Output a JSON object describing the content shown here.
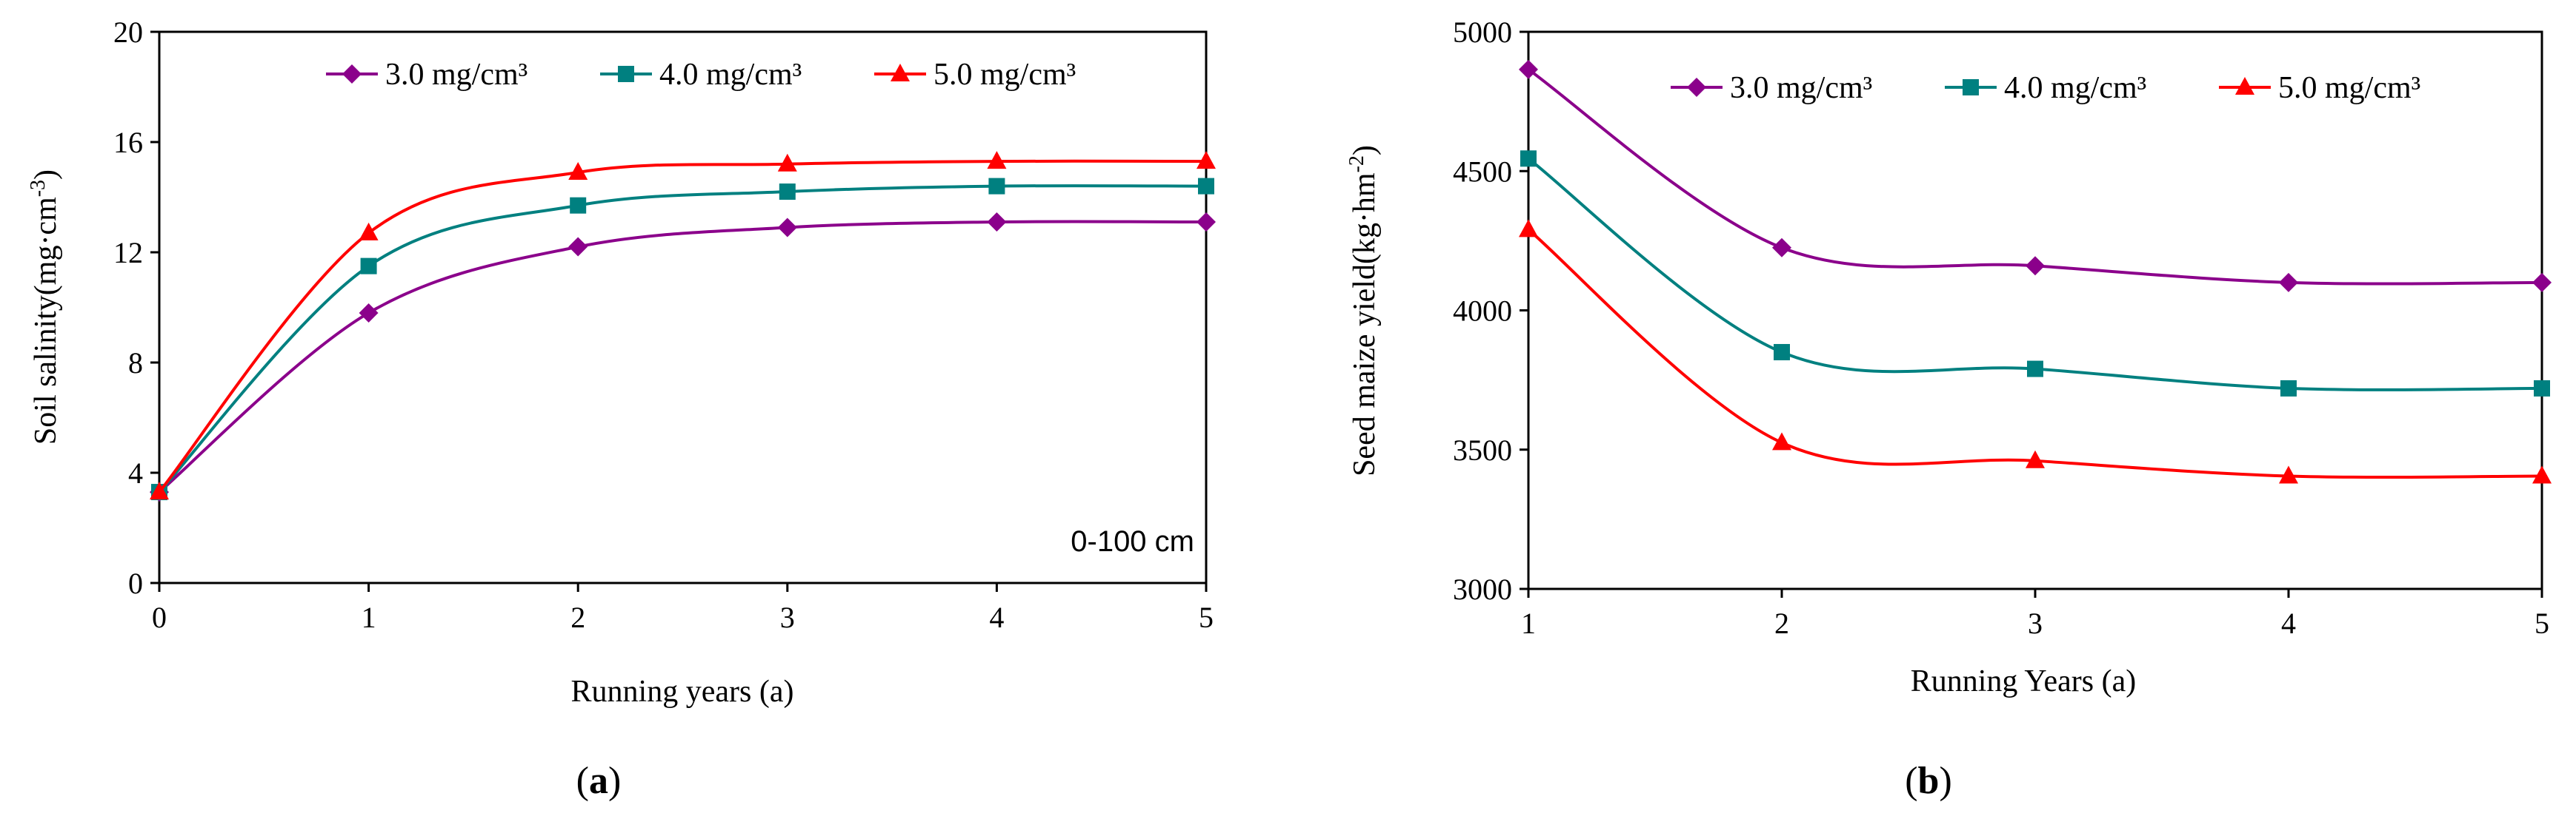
{
  "chart_data": [
    {
      "type": "line",
      "panel_label": "a",
      "title": "",
      "xlabel": "Running years (a)",
      "ylabel": "Soil salinity(mg·cm",
      "ylabel_sup": "-3",
      "ylabel_close": ")",
      "annotation": "0-100 cm",
      "xlim": [
        0,
        5
      ],
      "ylim": [
        0,
        20
      ],
      "x_ticks": [
        "0",
        "1",
        "2",
        "3",
        "4",
        "5"
      ],
      "y_ticks": [
        "0",
        "4",
        "8",
        "12",
        "16",
        "20"
      ],
      "grid": false,
      "legend_position": "top-right",
      "series": [
        {
          "name": "3.0 mg/cm³",
          "color": "#8b008b",
          "marker": "diamond",
          "x": [
            0,
            1,
            2,
            3,
            4,
            5
          ],
          "values": [
            3.3,
            9.8,
            12.2,
            12.9,
            13.1,
            13.1
          ]
        },
        {
          "name": "4.0 mg/cm³",
          "color": "#008080",
          "marker": "square",
          "x": [
            0,
            1,
            2,
            3,
            4,
            5
          ],
          "values": [
            3.3,
            11.5,
            13.7,
            14.2,
            14.4,
            14.4
          ]
        },
        {
          "name": "5.0 mg/cm³",
          "color": "#ff0000",
          "marker": "triangle",
          "x": [
            0,
            1,
            2,
            3,
            4,
            5
          ],
          "values": [
            3.3,
            12.7,
            14.9,
            15.2,
            15.3,
            15.3
          ]
        }
      ]
    },
    {
      "type": "line",
      "panel_label": "b",
      "title": "",
      "xlabel": "Running Years (a)",
      "ylabel": "Seed maize yield(kg·hm",
      "ylabel_sup": "-2",
      "ylabel_close": ")",
      "annotation": "",
      "xlim": [
        1,
        5
      ],
      "ylim": [
        3000,
        5000
      ],
      "x_ticks": [
        "1",
        "2",
        "3",
        "4",
        "5"
      ],
      "y_ticks": [
        "3000",
        "3500",
        "4000",
        "4500",
        "5000"
      ],
      "grid": false,
      "legend_position": "top-right",
      "series": [
        {
          "name": "3.0 mg/cm³",
          "color": "#8b008b",
          "marker": "diamond",
          "x": [
            1,
            2,
            3,
            4,
            5
          ],
          "values": [
            4865,
            4225,
            4160,
            4100,
            4100
          ]
        },
        {
          "name": "4.0 mg/cm³",
          "color": "#008080",
          "marker": "square",
          "x": [
            1,
            2,
            3,
            4,
            5
          ],
          "values": [
            4545,
            3850,
            3790,
            3720,
            3720
          ]
        },
        {
          "name": "5.0 mg/cm³",
          "color": "#ff0000",
          "marker": "triangle",
          "x": [
            1,
            2,
            3,
            4,
            5
          ],
          "values": [
            4290,
            3525,
            3460,
            3405,
            3405
          ]
        }
      ]
    }
  ]
}
